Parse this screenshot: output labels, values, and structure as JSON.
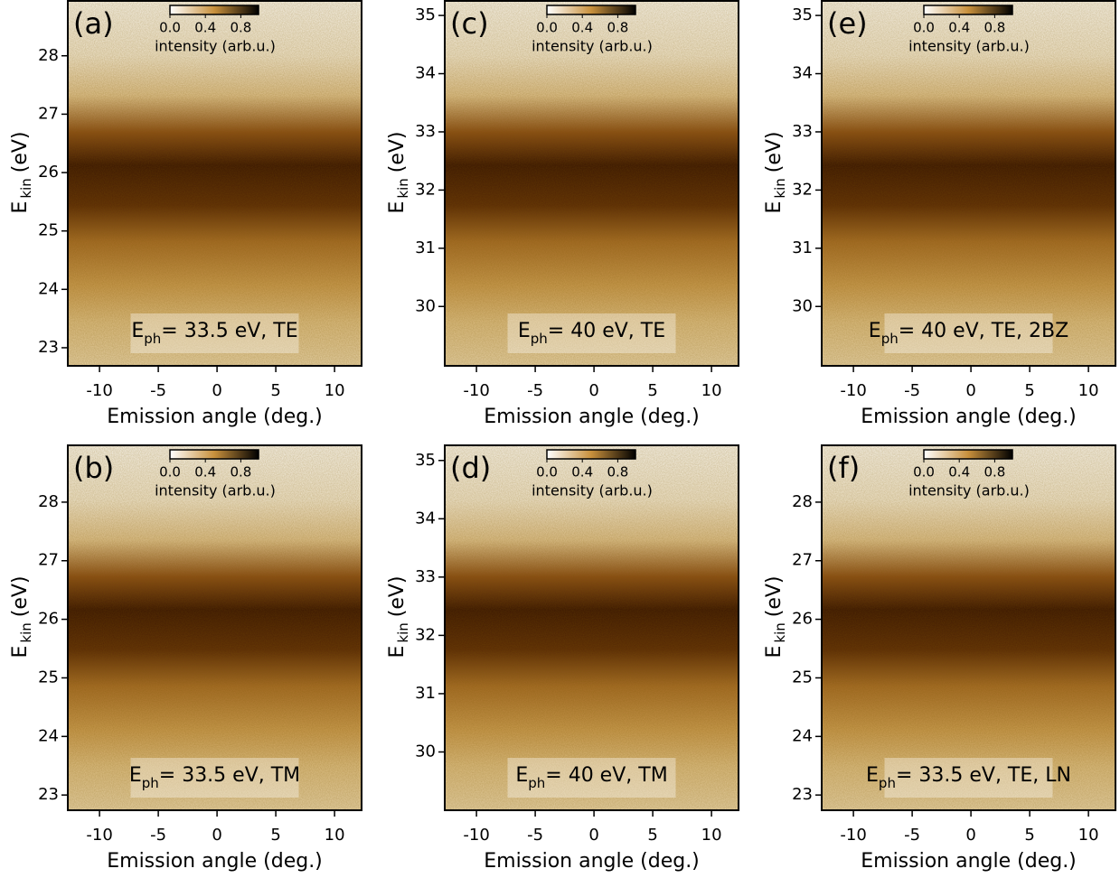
{
  "chart_data": [
    {
      "type": "heatmap",
      "panel_label": "(a)",
      "xlabel": "Emission angle (deg.)",
      "ylabel": {
        "main": "E",
        "sub": "kin",
        "unit": "(eV)"
      },
      "xlim": [
        -12.7,
        12.3
      ],
      "xticks": [
        -10,
        -5,
        0,
        5,
        10
      ],
      "ylim": [
        22.69,
        28.94
      ],
      "yticks": [
        23,
        24,
        25,
        26,
        27,
        28
      ],
      "annotation": {
        "main": "E",
        "sub": "ph",
        "rest": "= 33.5 eV, TE"
      },
      "colorbar": {
        "label": "intensity (arb.u.)",
        "lim": [
          0,
          1
        ],
        "ticks": [
          {
            "value": 0,
            "label": "0.0"
          },
          0.4,
          0.8
        ],
        "colors": [
          "#ffffff",
          "#c8903c",
          "#000000"
        ]
      }
    },
    {
      "type": "heatmap",
      "panel_label": "(c)",
      "xlabel": "Emission angle (deg.)",
      "ylabel": {
        "main": "E",
        "sub": "kin",
        "unit": "(eV)"
      },
      "xlim": [
        -12.7,
        12.3
      ],
      "xticks": [
        -10,
        -5,
        0,
        5,
        10
      ],
      "ylim": [
        28.98,
        35.25
      ],
      "yticks": [
        30,
        31,
        32,
        33,
        34,
        35
      ],
      "annotation": {
        "main": "E",
        "sub": "ph",
        "rest": "= 40 eV, TE"
      },
      "colorbar": {
        "label": "intensity (arb.u.)",
        "lim": [
          0,
          1
        ],
        "ticks": [
          {
            "value": 0,
            "label": "0.0"
          },
          0.4,
          0.8
        ],
        "colors": [
          "#ffffff",
          "#c8903c",
          "#000000"
        ]
      }
    },
    {
      "type": "heatmap",
      "panel_label": "(e)",
      "xlabel": "Emission angle (deg.)",
      "ylabel": {
        "main": "E",
        "sub": "kin",
        "unit": "(eV)"
      },
      "xlim": [
        -12.7,
        12.3
      ],
      "xticks": [
        -10,
        -5,
        0,
        5,
        10
      ],
      "ylim": [
        28.98,
        35.25
      ],
      "yticks": [
        30,
        31,
        32,
        33,
        34,
        35
      ],
      "annotation": {
        "main": "E",
        "sub": "ph",
        "rest": "= 40 eV, TE, 2BZ"
      },
      "colorbar": {
        "label": "intensity (arb.u.)",
        "lim": [
          0,
          1
        ],
        "ticks": [
          {
            "value": 0,
            "label": "0.0"
          },
          0.4,
          0.8
        ],
        "colors": [
          "#ffffff",
          "#c8903c",
          "#000000"
        ]
      }
    },
    {
      "type": "heatmap",
      "panel_label": "(b)",
      "xlabel": "Emission angle (deg.)",
      "ylabel": {
        "main": "E",
        "sub": "kin",
        "unit": "(eV)"
      },
      "xlim": [
        -12.7,
        12.3
      ],
      "xticks": [
        -10,
        -5,
        0,
        5,
        10
      ],
      "ylim": [
        22.74,
        28.97
      ],
      "yticks": [
        23,
        24,
        25,
        26,
        27,
        28
      ],
      "annotation": {
        "main": "E",
        "sub": "ph",
        "rest": "= 33.5 eV, TM"
      },
      "colorbar": {
        "label": "intensity (arb.u.)",
        "lim": [
          0,
          1
        ],
        "ticks": [
          {
            "value": 0,
            "label": "0.0"
          },
          0.4,
          0.8
        ],
        "colors": [
          "#ffffff",
          "#c8903c",
          "#000000"
        ]
      }
    },
    {
      "type": "heatmap",
      "panel_label": "(d)",
      "xlabel": "Emission angle (deg.)",
      "ylabel": {
        "main": "E",
        "sub": "kin",
        "unit": "(eV)"
      },
      "xlim": [
        -12.7,
        12.3
      ],
      "xticks": [
        -10,
        -5,
        0,
        5,
        10
      ],
      "ylim": [
        29.0,
        35.26
      ],
      "yticks": [
        30,
        31,
        32,
        33,
        34,
        35
      ],
      "annotation": {
        "main": "E",
        "sub": "ph",
        "rest": "= 40 eV, TM"
      },
      "colorbar": {
        "label": "intensity (arb.u.)",
        "lim": [
          0,
          1
        ],
        "ticks": [
          {
            "value": 0,
            "label": "0.0"
          },
          0.4,
          0.8
        ],
        "colors": [
          "#ffffff",
          "#c8903c",
          "#000000"
        ]
      }
    },
    {
      "type": "heatmap",
      "panel_label": "(f)",
      "xlabel": "Emission angle (deg.)",
      "ylabel": {
        "main": "E",
        "sub": "kin",
        "unit": "(eV)"
      },
      "xlim": [
        -12.7,
        12.3
      ],
      "xticks": [
        -10,
        -5,
        0,
        5,
        10
      ],
      "ylim": [
        22.74,
        28.97
      ],
      "yticks": [
        23,
        24,
        25,
        26,
        27,
        28
      ],
      "annotation": {
        "main": "E",
        "sub": "ph",
        "rest": "= 33.5 eV, TE, LN"
      },
      "colorbar": {
        "label": "intensity (arb.u.)",
        "lim": [
          0,
          1
        ],
        "ticks": [
          {
            "value": 0,
            "label": "0.0"
          },
          0.4,
          0.8
        ],
        "colors": [
          "#ffffff",
          "#c8903c",
          "#000000"
        ]
      }
    }
  ]
}
